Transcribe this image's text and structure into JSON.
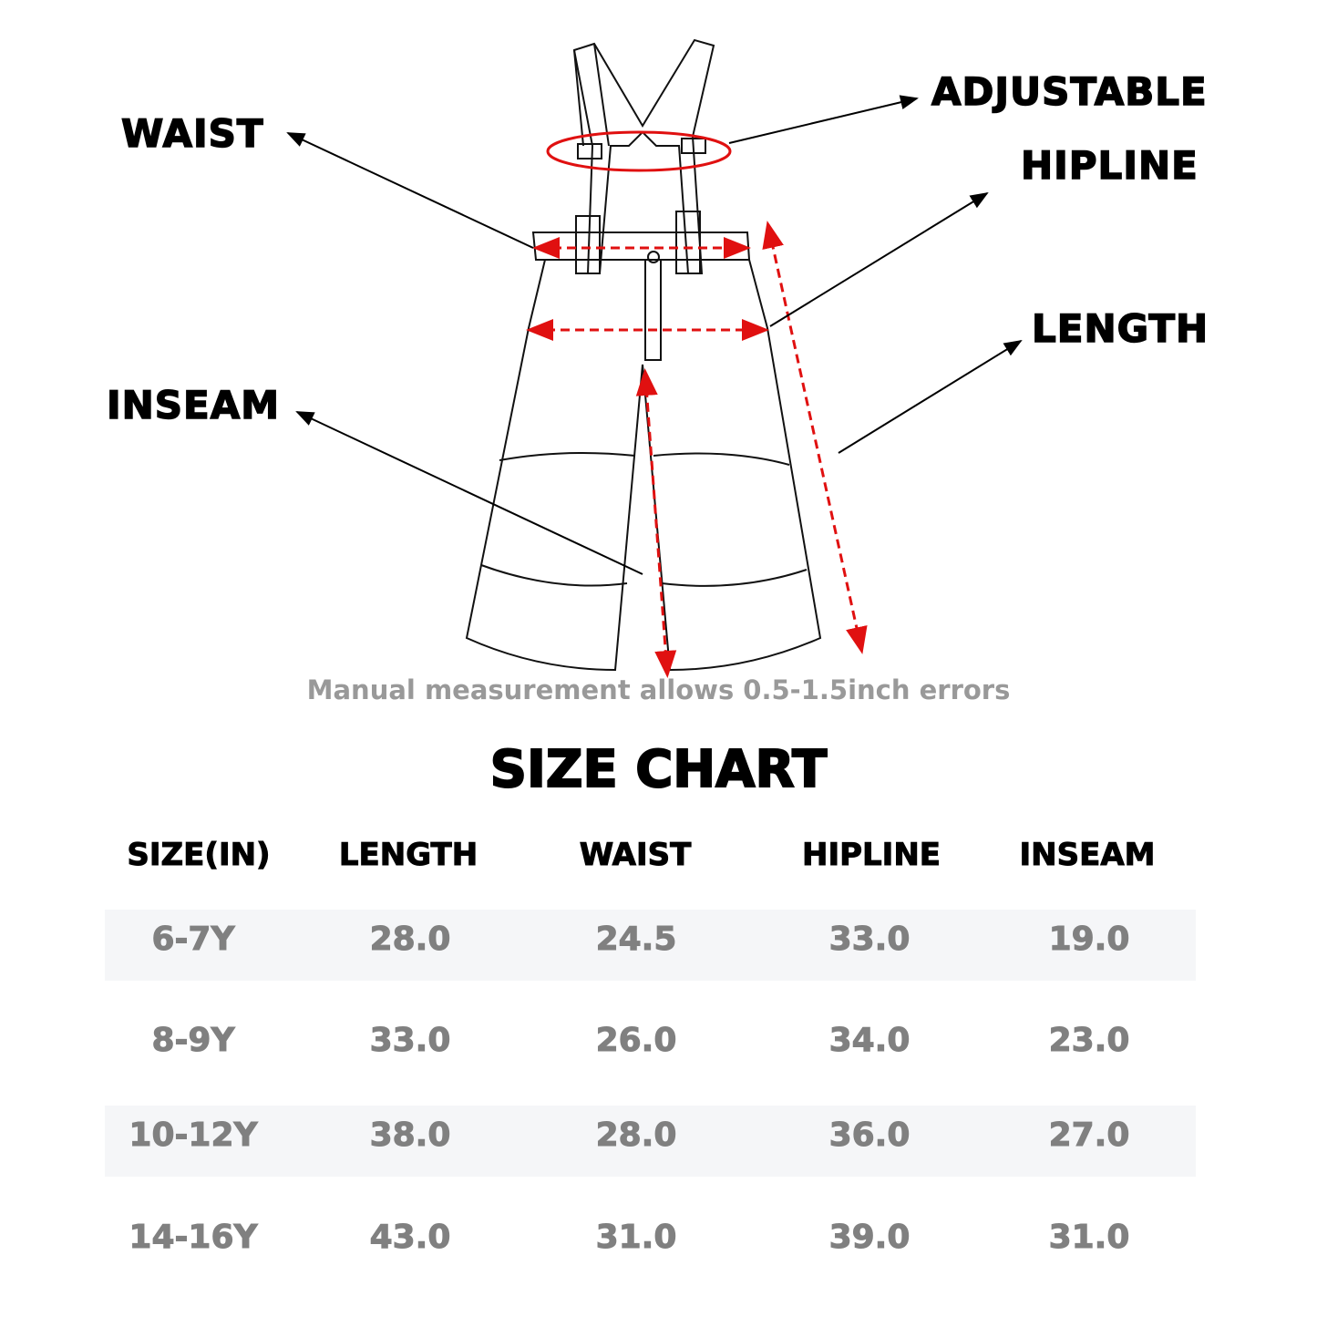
{
  "labels": {
    "waist": "WAIST",
    "adjustable": "ADJUSTABLE",
    "hipline": "HIPLINE",
    "length": "LENGTH",
    "inseam": "INSEAM"
  },
  "note": "Manual measurement allows 0.5-1.5inch errors",
  "title": "SIZE CHART",
  "colors": {
    "measure_line": "#e01010",
    "row_shade": "#f5f6f8",
    "value_text": "#808080"
  },
  "table": {
    "headers": [
      "SIZE(IN)",
      "LENGTH",
      "WAIST",
      "HIPLINE",
      "INSEAM"
    ],
    "rows": [
      [
        "6-7Y",
        "28.0",
        "24.5",
        "33.0",
        "19.0"
      ],
      [
        "8-9Y",
        "33.0",
        "26.0",
        "34.0",
        "23.0"
      ],
      [
        "10-12Y",
        "38.0",
        "28.0",
        "36.0",
        "27.0"
      ],
      [
        "14-16Y",
        "43.0",
        "31.0",
        "39.0",
        "31.0"
      ]
    ]
  }
}
